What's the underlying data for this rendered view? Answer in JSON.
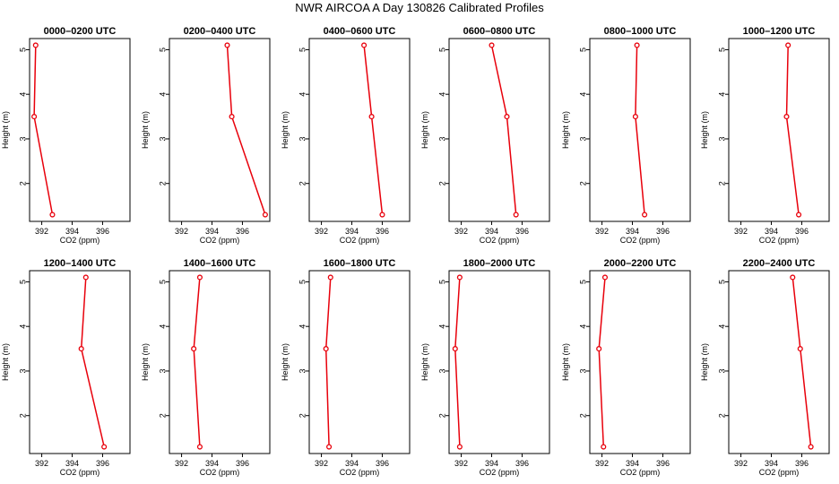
{
  "figure": {
    "title": "NWR AIRCOA A  Day 130826  Calibrated Profiles"
  },
  "colors": {
    "series": "#e8000b",
    "axes": "#000000",
    "background": "#ffffff"
  },
  "chart_data": [
    {
      "type": "line",
      "title": "0000–0200 UTC",
      "xlabel": "CO2 (ppm)",
      "ylabel": "Height (m)",
      "xlim": [
        391.2,
        397.8
      ],
      "ylim": [
        1.15,
        5.25
      ],
      "xticks": [
        392,
        394,
        396
      ],
      "yticks": [
        2,
        3,
        4,
        5
      ],
      "series": [
        {
          "name": "CO2",
          "x": [
            392.7,
            391.5,
            391.6
          ],
          "y": [
            1.3,
            3.5,
            5.1
          ]
        }
      ]
    },
    {
      "type": "line",
      "title": "0200–0400 UTC",
      "xlabel": "CO2 (ppm)",
      "ylabel": "Height (m)",
      "xlim": [
        391.2,
        397.8
      ],
      "ylim": [
        1.15,
        5.25
      ],
      "xticks": [
        392,
        394,
        396
      ],
      "yticks": [
        2,
        3,
        4,
        5
      ],
      "series": [
        {
          "name": "CO2",
          "x": [
            397.5,
            395.3,
            395.0
          ],
          "y": [
            1.3,
            3.5,
            5.1
          ]
        }
      ]
    },
    {
      "type": "line",
      "title": "0400–0600 UTC",
      "xlabel": "CO2 (ppm)",
      "ylabel": "Height (m)",
      "xlim": [
        391.2,
        397.8
      ],
      "ylim": [
        1.15,
        5.25
      ],
      "xticks": [
        392,
        394,
        396
      ],
      "yticks": [
        2,
        3,
        4,
        5
      ],
      "series": [
        {
          "name": "CO2",
          "x": [
            396.0,
            395.3,
            394.8
          ],
          "y": [
            1.3,
            3.5,
            5.1
          ]
        }
      ]
    },
    {
      "type": "line",
      "title": "0600–0800 UTC",
      "xlabel": "CO2 (ppm)",
      "ylabel": "Height (m)",
      "xlim": [
        391.2,
        397.8
      ],
      "ylim": [
        1.15,
        5.25
      ],
      "xticks": [
        392,
        394,
        396
      ],
      "yticks": [
        2,
        3,
        4,
        5
      ],
      "series": [
        {
          "name": "CO2",
          "x": [
            395.6,
            395.0,
            394.0
          ],
          "y": [
            1.3,
            3.5,
            5.1
          ]
        }
      ]
    },
    {
      "type": "line",
      "title": "0800–1000 UTC",
      "xlabel": "CO2 (ppm)",
      "ylabel": "Height (m)",
      "xlim": [
        391.2,
        397.8
      ],
      "ylim": [
        1.15,
        5.25
      ],
      "xticks": [
        392,
        394,
        396
      ],
      "yticks": [
        2,
        3,
        4,
        5
      ],
      "series": [
        {
          "name": "CO2",
          "x": [
            394.8,
            394.2,
            394.3
          ],
          "y": [
            1.3,
            3.5,
            5.1
          ]
        }
      ]
    },
    {
      "type": "line",
      "title": "1000–1200 UTC",
      "xlabel": "CO2 (ppm)",
      "ylabel": "Height (m)",
      "xlim": [
        391.2,
        397.8
      ],
      "ylim": [
        1.15,
        5.25
      ],
      "xticks": [
        392,
        394,
        396
      ],
      "yticks": [
        2,
        3,
        4,
        5
      ],
      "series": [
        {
          "name": "CO2",
          "x": [
            395.8,
            395.0,
            395.1
          ],
          "y": [
            1.3,
            3.5,
            5.1
          ]
        }
      ]
    },
    {
      "type": "line",
      "title": "1200–1400 UTC",
      "xlabel": "CO2 (ppm)",
      "ylabel": "Height (m)",
      "xlim": [
        391.2,
        397.8
      ],
      "ylim": [
        1.15,
        5.25
      ],
      "xticks": [
        392,
        394,
        396
      ],
      "yticks": [
        2,
        3,
        4,
        5
      ],
      "series": [
        {
          "name": "CO2",
          "x": [
            396.1,
            394.6,
            394.9
          ],
          "y": [
            1.3,
            3.5,
            5.1
          ]
        }
      ]
    },
    {
      "type": "line",
      "title": "1400–1600 UTC",
      "xlabel": "CO2 (ppm)",
      "ylabel": "Height (m)",
      "xlim": [
        391.2,
        397.8
      ],
      "ylim": [
        1.15,
        5.25
      ],
      "xticks": [
        392,
        394,
        396
      ],
      "yticks": [
        2,
        3,
        4,
        5
      ],
      "series": [
        {
          "name": "CO2",
          "x": [
            393.2,
            392.8,
            393.2
          ],
          "y": [
            1.3,
            3.5,
            5.1
          ]
        }
      ]
    },
    {
      "type": "line",
      "title": "1600–1800 UTC",
      "xlabel": "CO2 (ppm)",
      "ylabel": "Height (m)",
      "xlim": [
        391.2,
        397.8
      ],
      "ylim": [
        1.15,
        5.25
      ],
      "xticks": [
        392,
        394,
        396
      ],
      "yticks": [
        2,
        3,
        4,
        5
      ],
      "series": [
        {
          "name": "CO2",
          "x": [
            392.5,
            392.3,
            392.6
          ],
          "y": [
            1.3,
            3.5,
            5.1
          ]
        }
      ]
    },
    {
      "type": "line",
      "title": "1800–2000 UTC",
      "xlabel": "CO2 (ppm)",
      "ylabel": "Height (m)",
      "xlim": [
        391.2,
        397.8
      ],
      "ylim": [
        1.15,
        5.25
      ],
      "xticks": [
        392,
        394,
        396
      ],
      "yticks": [
        2,
        3,
        4,
        5
      ],
      "series": [
        {
          "name": "CO2",
          "x": [
            391.9,
            391.6,
            391.9
          ],
          "y": [
            1.3,
            3.5,
            5.1
          ]
        }
      ]
    },
    {
      "type": "line",
      "title": "2000–2200 UTC",
      "xlabel": "CO2 (ppm)",
      "ylabel": "Height (m)",
      "xlim": [
        391.2,
        397.8
      ],
      "ylim": [
        1.15,
        5.25
      ],
      "xticks": [
        392,
        394,
        396
      ],
      "yticks": [
        2,
        3,
        4,
        5
      ],
      "series": [
        {
          "name": "CO2",
          "x": [
            392.1,
            391.8,
            392.2
          ],
          "y": [
            1.3,
            3.5,
            5.1
          ]
        }
      ]
    },
    {
      "type": "line",
      "title": "2200–2400 UTC",
      "xlabel": "CO2 (ppm)",
      "ylabel": "Height (m)",
      "xlim": [
        391.2,
        397.8
      ],
      "ylim": [
        1.15,
        5.25
      ],
      "xticks": [
        392,
        394,
        396
      ],
      "yticks": [
        2,
        3,
        4,
        5
      ],
      "series": [
        {
          "name": "CO2",
          "x": [
            396.6,
            395.9,
            395.4
          ],
          "y": [
            1.3,
            3.5,
            5.1
          ]
        }
      ]
    }
  ]
}
